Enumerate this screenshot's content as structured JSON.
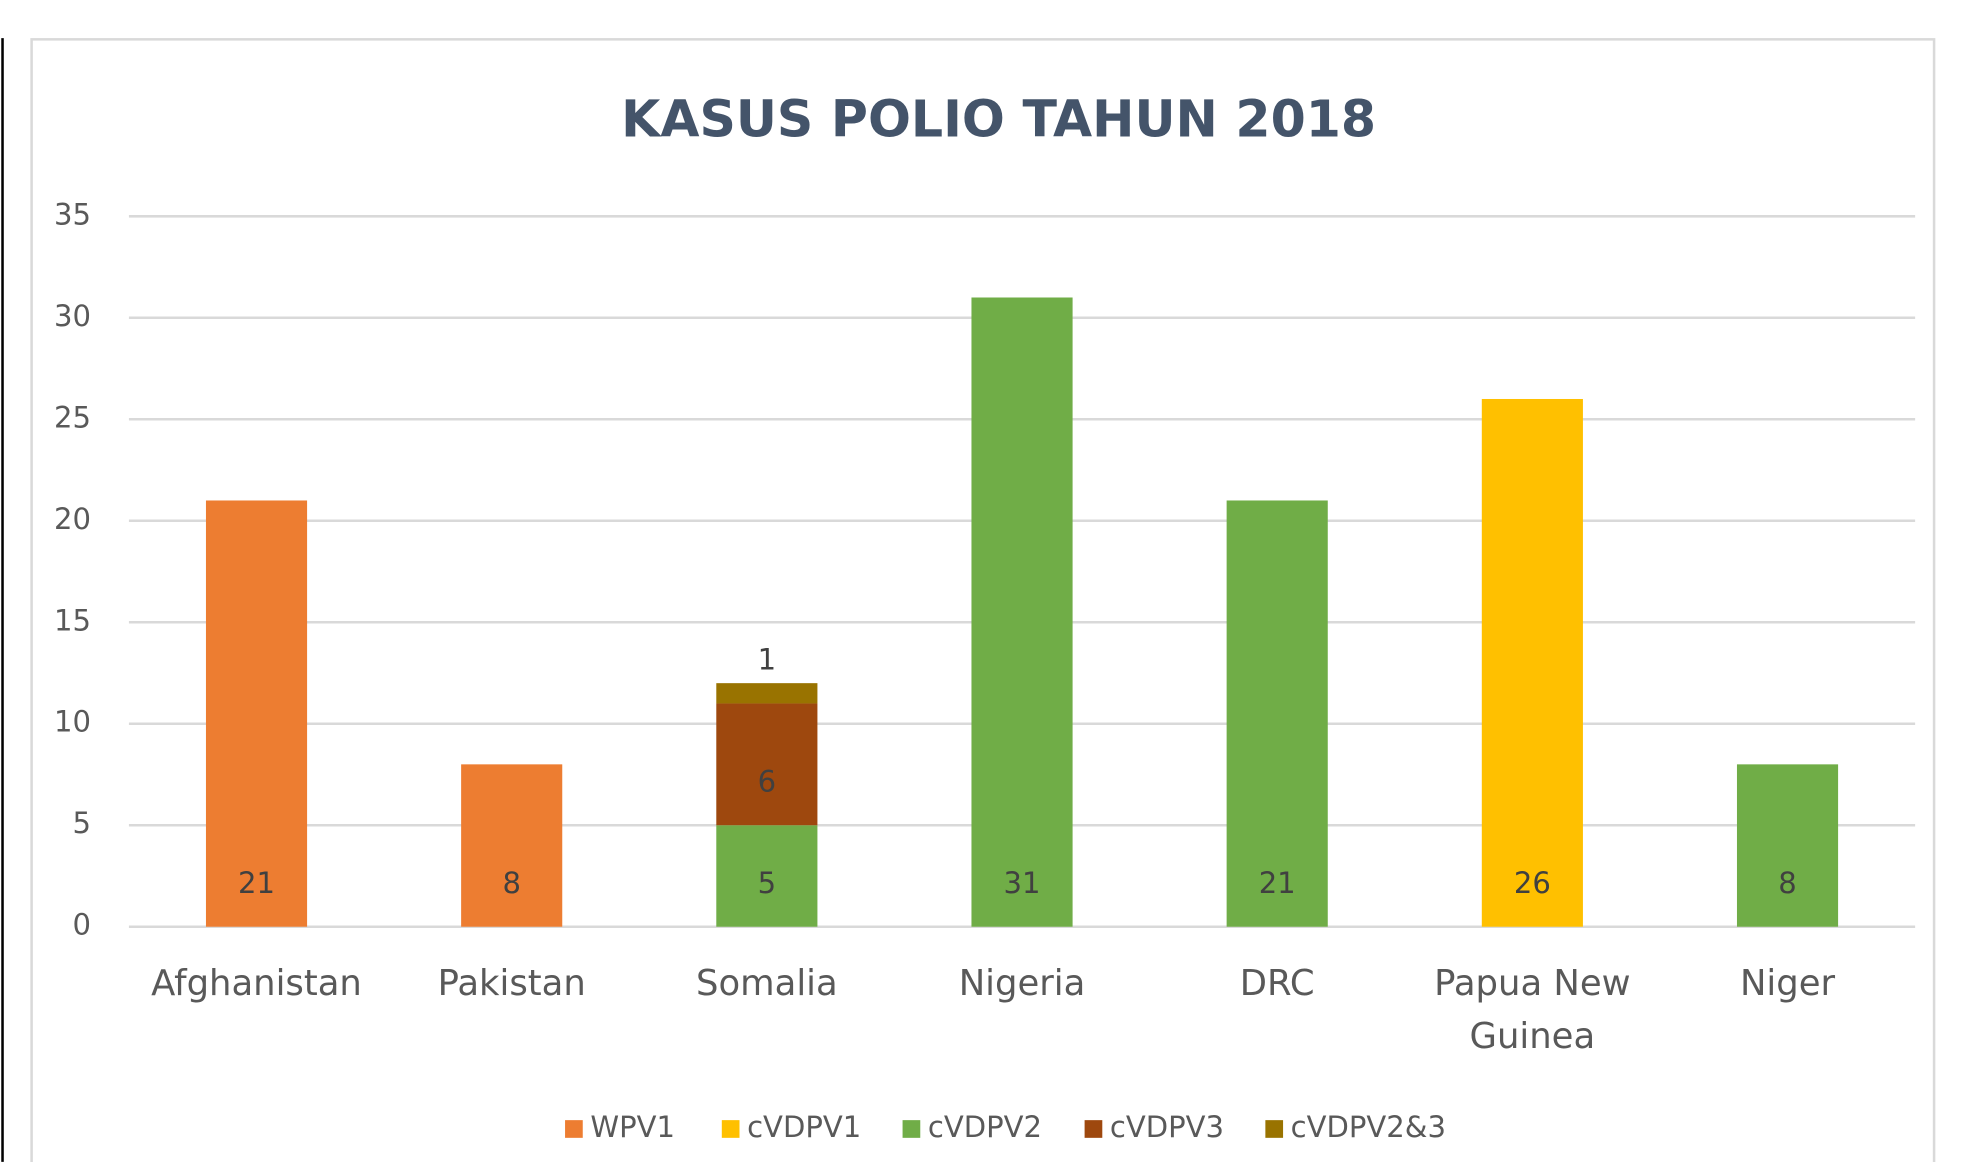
{
  "chart_data": {
    "type": "stacked_bar",
    "title": "KASUS POLIO TAHUN 2018",
    "categories": [
      "Afghanistan",
      "Pakistan",
      "Somalia",
      "Nigeria",
      "DRC",
      "Papua New Guinea",
      "Niger"
    ],
    "series": [
      {
        "name": "WPV1",
        "color": "#ed7d31",
        "values": [
          21,
          8,
          null,
          null,
          null,
          null,
          null
        ]
      },
      {
        "name": "cVDPV1",
        "color": "#ffc000",
        "values": [
          null,
          null,
          null,
          null,
          null,
          26,
          null
        ]
      },
      {
        "name": "cVDPV2",
        "color": "#70ad47",
        "values": [
          null,
          null,
          5,
          31,
          21,
          null,
          8
        ]
      },
      {
        "name": "cVDPV3",
        "color": "#9e480e",
        "values": [
          null,
          null,
          6,
          null,
          null,
          null,
          null
        ]
      },
      {
        "name": "cVDPV2&3",
        "color": "#997300",
        "values": [
          null,
          null,
          1,
          null,
          null,
          null,
          null
        ]
      }
    ],
    "ylim": [
      0,
      35
    ],
    "yticks": [
      0,
      5,
      10,
      15,
      20,
      25,
      30,
      35
    ],
    "grid": true,
    "legend": "bottom"
  }
}
